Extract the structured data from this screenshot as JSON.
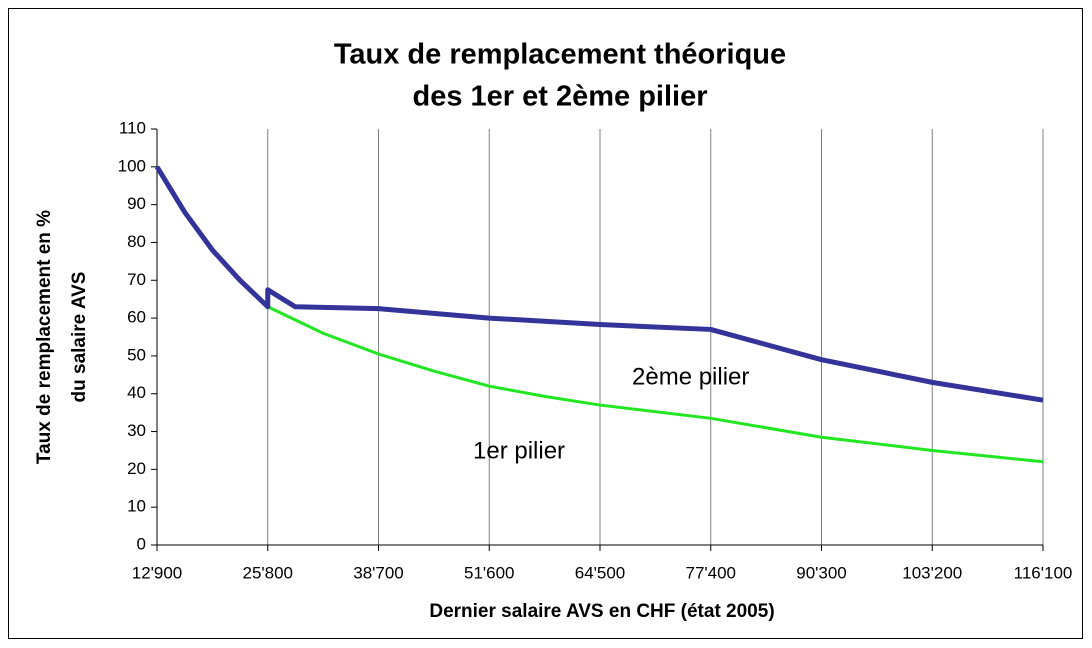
{
  "chart_data": {
    "type": "line",
    "title": [
      "Taux de remplacement théorique",
      "des 1er et 2ème pilier"
    ],
    "xlabel": "Dernier salaire AVS en CHF (état 2005)",
    "ylabel": [
      "Taux de remplacement en %",
      "du salaire AVS"
    ],
    "xlim": [
      12900,
      116100
    ],
    "xticks": [
      {
        "value": 12900,
        "label": "12'900"
      },
      {
        "value": 25800,
        "label": "25'800"
      },
      {
        "value": 38700,
        "label": "38'700"
      },
      {
        "value": 51600,
        "label": "51'600"
      },
      {
        "value": 64500,
        "label": "64'500"
      },
      {
        "value": 77400,
        "label": "77'400"
      },
      {
        "value": 90300,
        "label": "90'300"
      },
      {
        "value": 103200,
        "label": "103'200"
      },
      {
        "value": 116100,
        "label": "116'100"
      }
    ],
    "ylim": [
      0,
      110
    ],
    "yticks": [
      0,
      10,
      20,
      30,
      40,
      50,
      60,
      70,
      80,
      90,
      100,
      110
    ],
    "grid": "x",
    "series": [
      {
        "name": "1er pilier",
        "color": "#22e622",
        "x": [
          12900,
          16125,
          19350,
          22575,
          25800,
          32250,
          38700,
          45150,
          51600,
          58050,
          64500,
          77400,
          90300,
          103200,
          116100
        ],
        "values": [
          100,
          88,
          78,
          70,
          63,
          56,
          50.5,
          46,
          42,
          39.3,
          37,
          33.5,
          28.5,
          25,
          22
        ]
      },
      {
        "name": "2ème pilier",
        "color": "#333399",
        "x": [
          12900,
          16125,
          19350,
          22575,
          25800,
          25800,
          29000,
          38700,
          51600,
          64500,
          77400,
          90300,
          103200,
          116100
        ],
        "values": [
          100,
          88,
          78,
          70,
          63,
          67.5,
          63,
          62.5,
          60,
          58.3,
          57,
          49,
          43,
          38.3
        ]
      }
    ]
  }
}
